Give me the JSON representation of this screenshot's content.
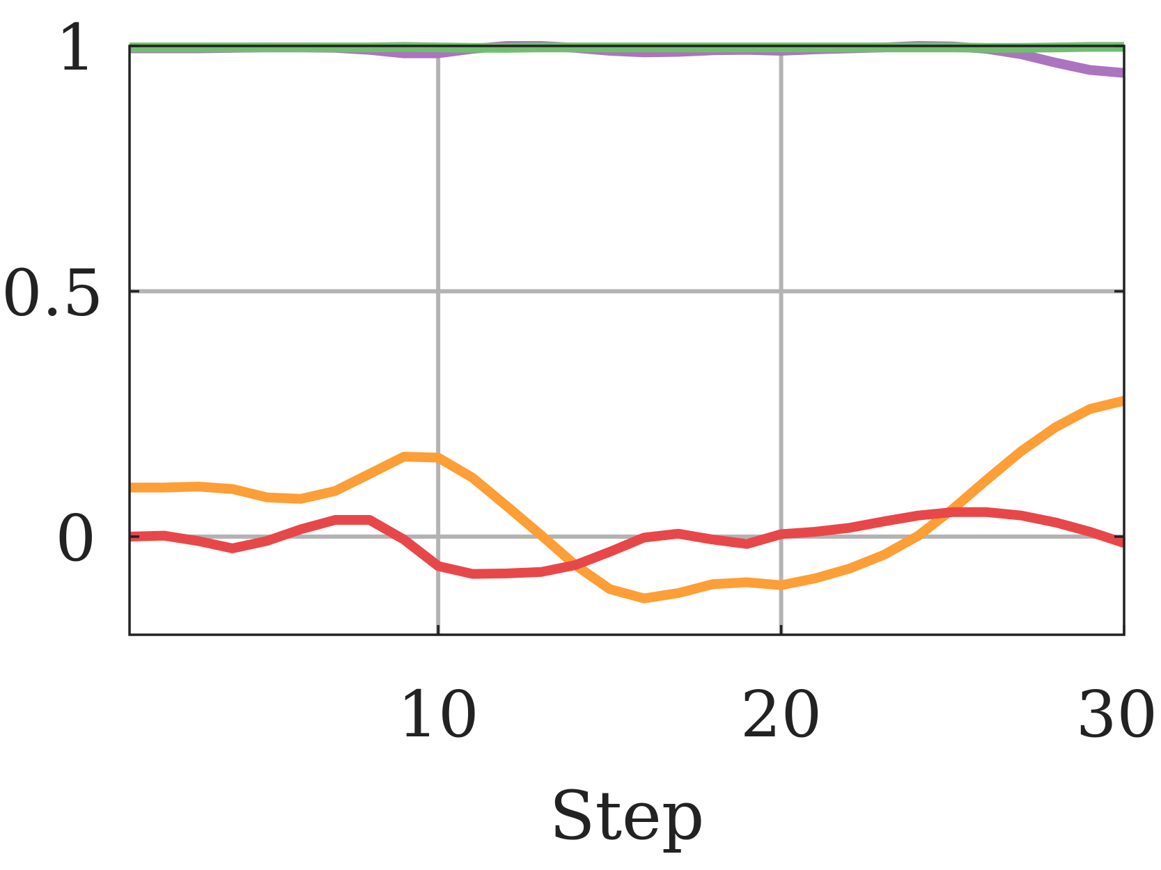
{
  "chart_data": {
    "type": "line",
    "title": "",
    "xlabel": "Step",
    "ylabel": "",
    "xlim": [
      1,
      30
    ],
    "ylim": [
      -0.2,
      1.0
    ],
    "grid": true,
    "x_ticks": [
      10,
      20,
      30
    ],
    "x_tick_labels": [
      "10",
      "20",
      "30"
    ],
    "y_ticks": [
      0,
      0.5,
      1
    ],
    "y_tick_labels": [
      "0",
      "0.5",
      "1"
    ],
    "x": [
      1,
      2,
      3,
      4,
      5,
      6,
      7,
      8,
      9,
      10,
      11,
      12,
      13,
      14,
      15,
      16,
      17,
      18,
      19,
      20,
      21,
      22,
      23,
      24,
      25,
      26,
      27,
      28,
      29,
      30
    ],
    "series": [
      {
        "color": "#ab74bf",
        "values": [
          0.995,
          0.995,
          0.995,
          0.996,
          0.997,
          0.997,
          0.996,
          0.992,
          0.985,
          0.985,
          0.994,
          1.0,
          1.0,
          0.996,
          0.99,
          0.987,
          0.988,
          0.991,
          0.992,
          0.99,
          0.993,
          0.995,
          0.997,
          1.0,
          0.999,
          0.994,
          0.983,
          0.966,
          0.951,
          0.945
        ]
      },
      {
        "color": "#71bf6e",
        "values": [
          0.997,
          0.997,
          0.997,
          0.997,
          0.997,
          0.997,
          0.997,
          0.997,
          0.998,
          0.997,
          0.996,
          0.996,
          0.997,
          0.997,
          0.997,
          0.997,
          0.997,
          0.997,
          0.997,
          0.997,
          0.997,
          0.997,
          0.997,
          0.997,
          0.997,
          0.996,
          0.996,
          0.997,
          0.998,
          0.998
        ]
      },
      {
        "color": "#fe9e36",
        "values": [
          0.1,
          0.1,
          0.102,
          0.097,
          0.08,
          0.077,
          0.093,
          0.128,
          0.163,
          0.161,
          0.12,
          0.062,
          0.003,
          -0.058,
          -0.107,
          -0.126,
          -0.115,
          -0.097,
          -0.093,
          -0.099,
          -0.085,
          -0.065,
          -0.037,
          0.002,
          0.056,
          0.116,
          0.174,
          0.223,
          0.26,
          0.277
        ]
      },
      {
        "color": "#e8474a",
        "values": [
          0.0,
          0.002,
          -0.009,
          -0.024,
          -0.009,
          0.015,
          0.034,
          0.034,
          -0.006,
          -0.06,
          -0.076,
          -0.075,
          -0.072,
          -0.058,
          -0.031,
          -0.002,
          0.006,
          -0.006,
          -0.015,
          0.005,
          0.01,
          0.018,
          0.031,
          0.043,
          0.05,
          0.05,
          0.043,
          0.029,
          0.01,
          -0.013
        ]
      }
    ]
  }
}
